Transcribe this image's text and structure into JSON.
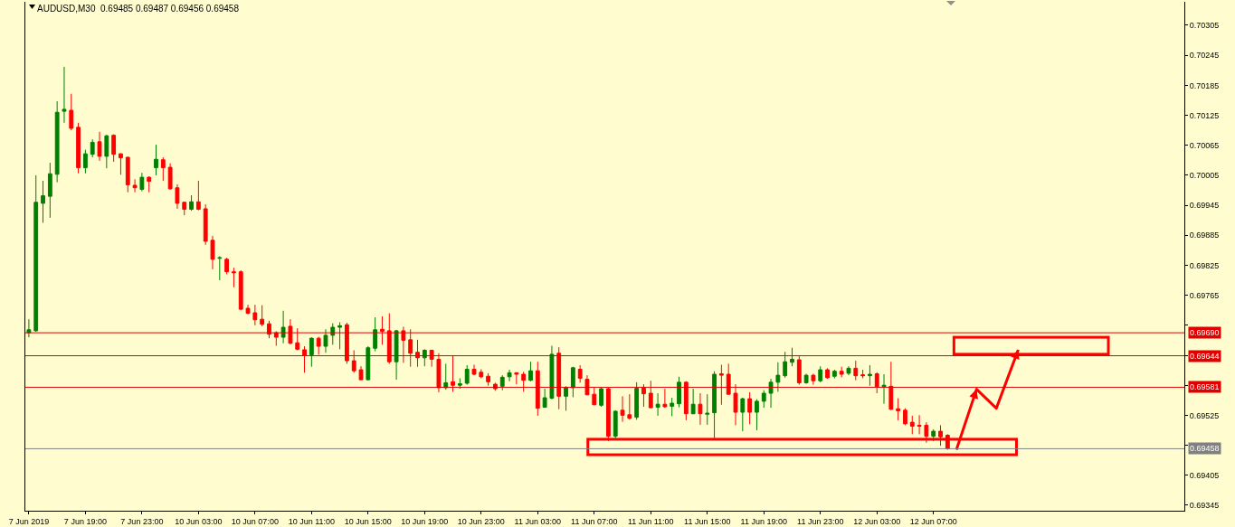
{
  "chart_data": {
    "type": "candlestick",
    "title": "AUDUSD,M30  0.69485 0.69487 0.69456 0.69458",
    "categories": [
      "7 Jun 2019",
      null,
      null,
      null,
      null,
      null,
      null,
      null,
      "7 Jun 19:00",
      null,
      null,
      null,
      null,
      null,
      null,
      null,
      "7 Jun 23:00",
      null,
      null,
      null,
      null,
      null,
      null,
      null,
      "10 Jun 03:00",
      null,
      null,
      null,
      null,
      null,
      null,
      null,
      "10 Jun 07:00",
      null,
      null,
      null,
      null,
      null,
      null,
      null,
      "10 Jun 11:00",
      null,
      null,
      null,
      null,
      null,
      null,
      null,
      "10 Jun 15:00",
      null,
      null,
      null,
      null,
      null,
      null,
      null,
      "10 Jun 19:00",
      null,
      null,
      null,
      null,
      null,
      null,
      null,
      "10 Jun 23:00",
      null,
      null,
      null,
      null,
      null,
      null,
      null,
      "11 Jun 03:00",
      null,
      null,
      null,
      null,
      null,
      null,
      null,
      "11 Jun 07:00",
      null,
      null,
      null,
      null,
      null,
      null,
      null,
      "11 Jun 11:00",
      null,
      null,
      null,
      null,
      null,
      null,
      null,
      "11 Jun 15:00",
      null,
      null,
      null,
      null,
      null,
      null,
      null,
      "11 Jun 19:00",
      null,
      null,
      null,
      null,
      null,
      null,
      null,
      "11 Jun 23:00",
      null,
      null,
      null,
      null,
      null,
      null,
      null,
      "12 Jun 03:00",
      null,
      null,
      null,
      null,
      null,
      null,
      null,
      "12 Jun 07:00",
      null,
      null,
      null,
      null,
      null,
      null,
      null,
      null,
      null,
      null,
      null,
      null,
      null,
      null,
      null,
      null,
      null,
      null,
      null,
      null,
      null,
      null,
      null,
      null,
      null,
      null,
      null,
      null,
      null,
      null,
      null,
      null,
      null,
      null,
      null
    ],
    "ohlc": [
      [
        0.6969,
        0.69717,
        0.69681,
        0.69696
      ],
      [
        0.69694,
        0.70005,
        0.69692,
        0.69951
      ],
      [
        0.69949,
        0.69994,
        0.6991,
        0.69964
      ],
      [
        0.69963,
        0.7003,
        0.6992,
        0.70008
      ],
      [
        0.70007,
        0.70153,
        0.69991,
        0.70131
      ],
      [
        0.70133,
        0.70222,
        0.7011,
        0.70137
      ],
      [
        0.70135,
        0.70168,
        0.70095,
        0.70099
      ],
      [
        0.70101,
        0.7011,
        0.70009,
        0.7002
      ],
      [
        0.7002,
        0.70056,
        0.70009,
        0.70048
      ],
      [
        0.70047,
        0.70077,
        0.70041,
        0.70071
      ],
      [
        0.70072,
        0.70092,
        0.70034,
        0.70043
      ],
      [
        0.70043,
        0.70086,
        0.70019,
        0.70084
      ],
      [
        0.70085,
        0.70087,
        0.70032,
        0.70047
      ],
      [
        0.70048,
        0.70049,
        0.70006,
        0.7004
      ],
      [
        0.70041,
        0.70042,
        0.69971,
        0.69986
      ],
      [
        0.69985,
        0.69997,
        0.69971,
        0.6998
      ],
      [
        0.69977,
        0.7001,
        0.69973,
        0.70001
      ],
      [
        0.70001,
        0.70003,
        0.69971,
        0.69993
      ],
      [
        0.7002,
        0.70066,
        0.70005,
        0.70037
      ],
      [
        0.70036,
        0.70041,
        0.69994,
        0.7002
      ],
      [
        0.70021,
        0.70029,
        0.69976,
        0.69978
      ],
      [
        0.6998,
        0.69987,
        0.69938,
        0.69949
      ],
      [
        0.69951,
        0.69952,
        0.69925,
        0.69937
      ],
      [
        0.69937,
        0.69965,
        0.69934,
        0.69952
      ],
      [
        0.69952,
        0.69994,
        0.69935,
        0.69937
      ],
      [
        0.69938,
        0.69947,
        0.69866,
        0.69873
      ],
      [
        0.69875,
        0.69884,
        0.69817,
        0.69837
      ],
      [
        0.69839,
        0.69843,
        0.69795,
        0.6984
      ],
      [
        0.69837,
        0.6984,
        0.69807,
        0.69812
      ],
      [
        0.69812,
        0.6982,
        0.69781,
        0.6981
      ],
      [
        0.69812,
        0.69815,
        0.69735,
        0.69737
      ],
      [
        0.69739,
        0.69746,
        0.69727,
        0.69729
      ],
      [
        0.6973,
        0.69746,
        0.69705,
        0.69716
      ],
      [
        0.69717,
        0.69745,
        0.69703,
        0.69707
      ],
      [
        0.69708,
        0.69714,
        0.69679,
        0.69687
      ],
      [
        0.6969,
        0.69693,
        0.69664,
        0.69681
      ],
      [
        0.69681,
        0.69734,
        0.69669,
        0.69701
      ],
      [
        0.69703,
        0.69717,
        0.69667,
        0.69669
      ],
      [
        0.6967,
        0.69699,
        0.69655,
        0.69657
      ],
      [
        0.69656,
        0.69663,
        0.6961,
        0.69645
      ],
      [
        0.69646,
        0.69681,
        0.69622,
        0.69679
      ],
      [
        0.69679,
        0.69682,
        0.69646,
        0.69663
      ],
      [
        0.69663,
        0.69697,
        0.6965,
        0.69685
      ],
      [
        0.69685,
        0.69709,
        0.69666,
        0.69701
      ],
      [
        0.69701,
        0.69711,
        0.69657,
        0.69704
      ],
      [
        0.69706,
        0.6971,
        0.69628,
        0.69634
      ],
      [
        0.69634,
        0.69655,
        0.6961,
        0.69614
      ],
      [
        0.69616,
        0.69623,
        0.69595,
        0.69596
      ],
      [
        0.69596,
        0.69663,
        0.69595,
        0.6966
      ],
      [
        0.69659,
        0.69721,
        0.69653,
        0.69696
      ],
      [
        0.69697,
        0.69723,
        0.69666,
        0.69693
      ],
      [
        0.69694,
        0.69729,
        0.69628,
        0.69632
      ],
      [
        0.69632,
        0.69696,
        0.69596,
        0.69694
      ],
      [
        0.69694,
        0.69702,
        0.6963,
        0.69675
      ],
      [
        0.69676,
        0.69697,
        0.69622,
        0.69649
      ],
      [
        0.69651,
        0.69676,
        0.69622,
        0.6964
      ],
      [
        0.6964,
        0.69657,
        0.69623,
        0.69655
      ],
      [
        0.69655,
        0.69656,
        0.69622,
        0.69637
      ],
      [
        0.69637,
        0.69649,
        0.69571,
        0.6958
      ],
      [
        0.6958,
        0.69628,
        0.69576,
        0.6959
      ],
      [
        0.69592,
        0.69645,
        0.69572,
        0.69585
      ],
      [
        0.69585,
        0.69599,
        0.69578,
        0.69588
      ],
      [
        0.69589,
        0.69625,
        0.69586,
        0.69617
      ],
      [
        0.69617,
        0.69626,
        0.69605,
        0.69607
      ],
      [
        0.69611,
        0.69617,
        0.69599,
        0.69602
      ],
      [
        0.69603,
        0.69609,
        0.69584,
        0.69592
      ],
      [
        0.69587,
        0.6959,
        0.69574,
        0.69578
      ],
      [
        0.69583,
        0.69605,
        0.69575,
        0.69601
      ],
      [
        0.69602,
        0.69616,
        0.69593,
        0.6961
      ],
      [
        0.6961,
        0.69611,
        0.69587,
        0.69607
      ],
      [
        0.69607,
        0.69612,
        0.69572,
        0.69595
      ],
      [
        0.69595,
        0.69632,
        0.69593,
        0.69614
      ],
      [
        0.69614,
        0.69632,
        0.69524,
        0.69539
      ],
      [
        0.69541,
        0.69578,
        0.6954,
        0.6956
      ],
      [
        0.69559,
        0.69664,
        0.69557,
        0.69647
      ],
      [
        0.69649,
        0.69661,
        0.69537,
        0.69563
      ],
      [
        0.69563,
        0.69583,
        0.69534,
        0.6958
      ],
      [
        0.6958,
        0.69622,
        0.69561,
        0.6962
      ],
      [
        0.69617,
        0.69625,
        0.6959,
        0.69599
      ],
      [
        0.69597,
        0.69605,
        0.69565,
        0.69566
      ],
      [
        0.69567,
        0.69581,
        0.69545,
        0.69546
      ],
      [
        0.69545,
        0.6958,
        0.69542,
        0.69578
      ],
      [
        0.69578,
        0.6958,
        0.69473,
        0.69483
      ],
      [
        0.69483,
        0.69535,
        0.69479,
        0.69533
      ],
      [
        0.69535,
        0.69563,
        0.69512,
        0.69525
      ],
      [
        0.69526,
        0.69567,
        0.69516,
        0.69519
      ],
      [
        0.69521,
        0.69591,
        0.69516,
        0.69579
      ],
      [
        0.6958,
        0.69587,
        0.69542,
        0.69568
      ],
      [
        0.69569,
        0.69594,
        0.69539,
        0.6954
      ],
      [
        0.69541,
        0.69569,
        0.69524,
        0.69547
      ],
      [
        0.69547,
        0.69578,
        0.6954,
        0.69542
      ],
      [
        0.69543,
        0.6956,
        0.69523,
        0.69549
      ],
      [
        0.69548,
        0.69602,
        0.69541,
        0.69591
      ],
      [
        0.69591,
        0.69593,
        0.69515,
        0.69528
      ],
      [
        0.69528,
        0.69578,
        0.69527,
        0.69547
      ],
      [
        0.69547,
        0.69569,
        0.69506,
        0.69528
      ],
      [
        0.69527,
        0.69567,
        0.69506,
        0.69529
      ],
      [
        0.6953,
        0.69613,
        0.69479,
        0.69607
      ],
      [
        0.69608,
        0.69626,
        0.69546,
        0.69605
      ],
      [
        0.69607,
        0.69628,
        0.69566,
        0.69567
      ],
      [
        0.69569,
        0.69587,
        0.69505,
        0.69531
      ],
      [
        0.69531,
        0.6956,
        0.69493,
        0.69558
      ],
      [
        0.69558,
        0.69571,
        0.69507,
        0.69531
      ],
      [
        0.69531,
        0.69557,
        0.69495,
        0.69553
      ],
      [
        0.69553,
        0.69575,
        0.6954,
        0.69569
      ],
      [
        0.69569,
        0.69598,
        0.6954,
        0.69591
      ],
      [
        0.69591,
        0.69631,
        0.69572,
        0.69605
      ],
      [
        0.69604,
        0.69652,
        0.696,
        0.69632
      ],
      [
        0.69631,
        0.6966,
        0.69623,
        0.69637
      ],
      [
        0.69636,
        0.69643,
        0.69586,
        0.6959
      ],
      [
        0.6959,
        0.69608,
        0.69588,
        0.69605
      ],
      [
        0.69605,
        0.69608,
        0.69586,
        0.69594
      ],
      [
        0.69594,
        0.69623,
        0.69591,
        0.69616
      ],
      [
        0.69616,
        0.69619,
        0.69598,
        0.696
      ],
      [
        0.69603,
        0.69616,
        0.69599,
        0.69613
      ],
      [
        0.69613,
        0.69622,
        0.69601,
        0.69607
      ],
      [
        0.69609,
        0.69623,
        0.69605,
        0.69619
      ],
      [
        0.69619,
        0.69634,
        0.69595,
        0.69604
      ],
      [
        0.69606,
        0.69616,
        0.69599,
        0.69604
      ],
      [
        0.69604,
        0.69625,
        0.69584,
        0.69607
      ],
      [
        0.69608,
        0.69611,
        0.69569,
        0.69582
      ],
      [
        0.69582,
        0.69607,
        0.69548,
        0.69585
      ],
      [
        0.69583,
        0.69632,
        0.69535,
        0.69537
      ],
      [
        0.69538,
        0.69559,
        0.69515,
        0.69534
      ],
      [
        0.69535,
        0.69539,
        0.69505,
        0.69508
      ],
      [
        0.69511,
        0.69524,
        0.69487,
        0.69503
      ],
      [
        0.69505,
        0.69525,
        0.69487,
        0.69503
      ],
      [
        0.69505,
        0.69511,
        0.6947,
        0.69483
      ],
      [
        0.69483,
        0.69497,
        0.69473,
        0.69493
      ],
      [
        0.69493,
        0.69505,
        0.69464,
        0.69482
      ],
      [
        0.69485,
        0.69487,
        0.69456,
        0.69458
      ],
      null,
      null,
      null,
      null,
      null,
      null,
      null,
      null,
      null,
      null,
      null,
      null,
      null,
      null,
      null,
      null,
      null,
      null,
      null,
      null,
      null,
      null,
      null,
      null,
      null,
      null,
      null,
      null,
      null,
      null,
      null,
      null,
      null
    ],
    "colors": [
      "#008000",
      "#008000",
      "#008000",
      "#008000",
      "#008000",
      "#008000",
      "#ff0000",
      "#ff0000",
      "#008000",
      "#008000",
      "#ff0000",
      "#008000",
      "#ff0000",
      "#ff0000",
      "#ff0000",
      "#ff0000",
      "#008000",
      "#ff0000",
      "#008000",
      "#ff0000",
      "#ff0000",
      "#ff0000",
      "#ff0000",
      "#008000",
      "#ff0000",
      "#ff0000",
      "#ff0000",
      "#008000",
      "#ff0000",
      "#ff0000",
      "#ff0000",
      "#ff0000",
      "#ff0000",
      "#ff0000",
      "#ff0000",
      "#ff0000",
      "#008000",
      "#ff0000",
      "#ff0000",
      "#ff0000",
      "#008000",
      "#ff0000",
      "#008000",
      "#008000",
      "#008000",
      "#ff0000",
      "#ff0000",
      "#ff0000",
      "#008000",
      "#008000",
      "#ff0000",
      "#ff0000",
      "#008000",
      "#ff0000",
      "#ff0000",
      "#ff0000",
      "#008000",
      "#ff0000",
      "#ff0000",
      "#008000",
      "#ff0000",
      "#008000",
      "#008000",
      "#ff0000",
      "#ff0000",
      "#ff0000",
      "#ff0000",
      "#008000",
      "#008000",
      "#ff0000",
      "#ff0000",
      "#008000",
      "#ff0000",
      "#008000",
      "#008000",
      "#ff0000",
      "#008000",
      "#008000",
      "#ff0000",
      "#ff0000",
      "#ff0000",
      "#008000",
      "#ff0000",
      "#008000",
      "#ff0000",
      "#ff0000",
      "#008000",
      "#ff0000",
      "#ff0000",
      "#008000",
      "#ff0000",
      "#008000",
      "#008000",
      "#ff0000",
      "#008000",
      "#ff0000",
      "#008000",
      "#008000",
      "#ff0000",
      "#ff0000",
      "#ff0000",
      "#008000",
      "#ff0000",
      "#008000",
      "#008000",
      "#008000",
      "#008000",
      "#008000",
      "#008000",
      "#ff0000",
      "#008000",
      "#ff0000",
      "#008000",
      "#ff0000",
      "#008000",
      "#ff0000",
      "#008000",
      "#ff0000",
      "#ff0000",
      "#008000",
      "#ff0000",
      "#008000",
      "#ff0000",
      "#ff0000",
      "#ff0000",
      "#ff0000",
      "#ff0000",
      "#ff0000",
      "#008000",
      "#ff0000",
      "#ff0000",
      null,
      null,
      null,
      null,
      null,
      null,
      null,
      null,
      null,
      null,
      null,
      null,
      null,
      null,
      null,
      null,
      null,
      null,
      null,
      null,
      null,
      null,
      null,
      null,
      null,
      null,
      null,
      null,
      null,
      null,
      null,
      null,
      null
    ],
    "ylim": [
      0.69334,
      0.70352
    ],
    "yticks": [
      0.69345,
      0.69405,
      {
        "value": 0.69465,
        "label": null
      },
      0.69525,
      {
        "value": 0.69585,
        "label": null
      },
      {
        "value": 0.69645,
        "label": null
      },
      {
        "value": 0.69705,
        "label": null
      },
      0.69765,
      0.69825,
      0.69885,
      0.69945,
      0.70005,
      0.70065,
      0.70125,
      0.70185,
      0.70245,
      0.70305
    ],
    "ref_lines": [
      {
        "axis": "y",
        "value": 0.6969,
        "label": "0.69690",
        "color": "#e00000"
      },
      {
        "axis": "y",
        "value": 0.69644,
        "label": "0.69644",
        "color": "#e00000"
      },
      {
        "axis": "y",
        "value": 0.69581,
        "label": "0.69581",
        "color": "#e00000"
      },
      {
        "axis": "y",
        "value": 0.69458,
        "label": "0.69458",
        "color": "#808080"
      }
    ],
    "grid": false,
    "legend": false
  }
}
